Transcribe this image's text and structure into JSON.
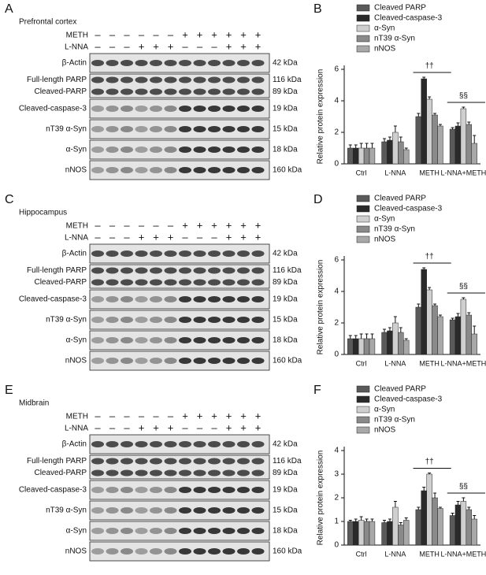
{
  "panels": [
    {
      "letter": "A",
      "region": "Prefrontal cortex",
      "treatments": [
        {
          "name": "METH",
          "signs": [
            "–",
            "–",
            "–",
            "–",
            "–",
            "–",
            "+",
            "+",
            "+",
            "+",
            "+",
            "+"
          ]
        },
        {
          "name": "L-NNA",
          "signs": [
            "–",
            "–",
            "–",
            "+",
            "+",
            "+",
            "–",
            "–",
            "–",
            "+",
            "+",
            "+"
          ]
        }
      ],
      "blots": [
        {
          "labels": [
            "β-Actin"
          ],
          "sizes": [
            "42 kDa"
          ]
        },
        {
          "labels": [
            "Full-length PARP",
            "Cleaved-PARP"
          ],
          "sizes": [
            "116 kDa",
            "89 kDa"
          ]
        },
        {
          "labels": [
            "Cleaved-caspase-3"
          ],
          "sizes": [
            "19 kDa"
          ]
        },
        {
          "labels": [
            "nT39 α-Syn"
          ],
          "sizes": [
            "15 kDa"
          ]
        },
        {
          "labels": [
            "α-Syn"
          ],
          "sizes": [
            "18 kDa"
          ]
        },
        {
          "labels": [
            "nNOS"
          ],
          "sizes": [
            "160 kDa"
          ]
        }
      ]
    },
    {
      "letter": "C",
      "region": "Hippocampus",
      "treatments": [
        {
          "name": "METH",
          "signs": [
            "–",
            "–",
            "–",
            "–",
            "–",
            "–",
            "+",
            "+",
            "+",
            "+",
            "+",
            "+"
          ]
        },
        {
          "name": "L-NNA",
          "signs": [
            "–",
            "–",
            "–",
            "+",
            "+",
            "+",
            "–",
            "–",
            "–",
            "+",
            "+",
            "+"
          ]
        }
      ],
      "blots": [
        {
          "labels": [
            "β-Actin"
          ],
          "sizes": [
            "42 kDa"
          ]
        },
        {
          "labels": [
            "Full-length PARP",
            "Cleaved-PARP"
          ],
          "sizes": [
            "116 kDa",
            "89 kDa"
          ]
        },
        {
          "labels": [
            "Cleaved-caspase-3"
          ],
          "sizes": [
            "19 kDa"
          ]
        },
        {
          "labels": [
            "nT39 α-Syn"
          ],
          "sizes": [
            "15 kDa"
          ]
        },
        {
          "labels": [
            "α-Syn"
          ],
          "sizes": [
            "18 kDa"
          ]
        },
        {
          "labels": [
            "nNOS"
          ],
          "sizes": [
            "160 kDa"
          ]
        }
      ]
    },
    {
      "letter": "E",
      "region": "Midbrain",
      "treatments": [
        {
          "name": "METH",
          "signs": [
            "–",
            "–",
            "–",
            "–",
            "–",
            "–",
            "+",
            "+",
            "+",
            "+",
            "+",
            "+"
          ]
        },
        {
          "name": "L-NNA",
          "signs": [
            "–",
            "–",
            "–",
            "+",
            "+",
            "+",
            "–",
            "–",
            "–",
            "+",
            "+",
            "+"
          ]
        }
      ],
      "blots": [
        {
          "labels": [
            "β-Actin"
          ],
          "sizes": [
            "42 kDa"
          ]
        },
        {
          "labels": [
            "Full-length PARP",
            "Cleaved-PARP"
          ],
          "sizes": [
            "116 kDa",
            "89 kDa"
          ]
        },
        {
          "labels": [
            "Cleaved-caspase-3"
          ],
          "sizes": [
            "19 kDa"
          ]
        },
        {
          "labels": [
            "nT39 α-Syn"
          ],
          "sizes": [
            "15 kDa"
          ]
        },
        {
          "labels": [
            "α-Syn"
          ],
          "sizes": [
            "18 kDa"
          ]
        },
        {
          "labels": [
            "nNOS"
          ],
          "sizes": [
            "160 kDa"
          ]
        }
      ]
    }
  ],
  "chart_data": [
    {
      "type": "bar",
      "panel_label": "B",
      "ylabel": "Relative protein expression",
      "categories": [
        "Ctrl",
        "L-NNA",
        "METH",
        "L-NNA+METH"
      ],
      "ylim": [
        0,
        6
      ],
      "yticks": [
        0,
        2,
        4,
        6
      ],
      "legend": "top-left",
      "annotations": [
        null,
        null,
        "††",
        "§§"
      ],
      "series": [
        {
          "name": "Cleaved PARP",
          "color": "#5a5a5a",
          "values": [
            1.0,
            1.4,
            3.0,
            2.2
          ],
          "errors": [
            0.2,
            0.2,
            0.2,
            0.1
          ]
        },
        {
          "name": "Cleaved-caspase-3",
          "color": "#2a2a2a",
          "values": [
            1.0,
            1.5,
            5.4,
            2.4
          ],
          "errors": [
            0.2,
            0.2,
            0.1,
            0.2
          ]
        },
        {
          "name": "α-Syn",
          "color": "#cfcfcf",
          "values": [
            1.0,
            2.0,
            4.1,
            3.5
          ],
          "errors": [
            0.3,
            0.4,
            0.15,
            0.1
          ]
        },
        {
          "name": "nT39 α-Syn",
          "color": "#8a8a8a",
          "values": [
            1.0,
            1.4,
            3.1,
            2.5
          ],
          "errors": [
            0.3,
            0.3,
            0.1,
            0.15
          ]
        },
        {
          "name": "nNOS",
          "color": "#a8a8a8",
          "values": [
            1.0,
            0.9,
            2.4,
            1.3
          ],
          "errors": [
            0.3,
            0.1,
            0.1,
            0.5
          ]
        }
      ]
    },
    {
      "type": "bar",
      "panel_label": "D",
      "ylabel": "Relative protein expression",
      "categories": [
        "Ctrl",
        "L-NNA",
        "METH",
        "L-NNA+METH"
      ],
      "ylim": [
        0,
        6
      ],
      "yticks": [
        0,
        2,
        4,
        6
      ],
      "legend": "top-left",
      "annotations": [
        null,
        null,
        "††",
        "§§"
      ],
      "series": [
        {
          "name": "Cleaved PARP",
          "color": "#5a5a5a",
          "values": [
            1.0,
            1.4,
            3.0,
            2.2
          ],
          "errors": [
            0.2,
            0.2,
            0.2,
            0.1
          ]
        },
        {
          "name": "Cleaved-caspase-3",
          "color": "#2a2a2a",
          "values": [
            1.0,
            1.5,
            5.4,
            2.4
          ],
          "errors": [
            0.2,
            0.2,
            0.1,
            0.2
          ]
        },
        {
          "name": "α-Syn",
          "color": "#cfcfcf",
          "values": [
            1.0,
            2.0,
            4.1,
            3.5
          ],
          "errors": [
            0.3,
            0.4,
            0.15,
            0.1
          ]
        },
        {
          "name": "nT39 α-Syn",
          "color": "#8a8a8a",
          "values": [
            1.0,
            1.4,
            3.1,
            2.5
          ],
          "errors": [
            0.3,
            0.3,
            0.1,
            0.15
          ]
        },
        {
          "name": "nNOS",
          "color": "#a8a8a8",
          "values": [
            1.0,
            0.9,
            2.4,
            1.3
          ],
          "errors": [
            0.3,
            0.1,
            0.1,
            0.5
          ]
        }
      ]
    },
    {
      "type": "bar",
      "panel_label": "F",
      "ylabel": "Relative protein expression",
      "categories": [
        "Ctrl",
        "L-NNA",
        "METH",
        "L-NNA+METH"
      ],
      "ylim": [
        0,
        4
      ],
      "yticks": [
        0,
        1,
        2,
        3,
        4
      ],
      "legend": "top-left",
      "annotations": [
        null,
        null,
        "††",
        "§§"
      ],
      "series": [
        {
          "name": "Cleaved PARP",
          "color": "#5a5a5a",
          "values": [
            1.0,
            0.95,
            1.5,
            1.25
          ],
          "errors": [
            0.05,
            0.1,
            0.1,
            0.1
          ]
        },
        {
          "name": "Cleaved-caspase-3",
          "color": "#2a2a2a",
          "values": [
            1.0,
            1.0,
            2.3,
            1.7
          ],
          "errors": [
            0.1,
            0.1,
            0.15,
            0.15
          ]
        },
        {
          "name": "α-Syn",
          "color": "#cfcfcf",
          "values": [
            1.05,
            1.6,
            3.0,
            1.85
          ],
          "errors": [
            0.15,
            0.25,
            0.05,
            0.15
          ]
        },
        {
          "name": "nT39 α-Syn",
          "color": "#8a8a8a",
          "values": [
            1.0,
            0.85,
            2.0,
            1.5
          ],
          "errors": [
            0.1,
            0.1,
            0.2,
            0.1
          ]
        },
        {
          "name": "nNOS",
          "color": "#a8a8a8",
          "values": [
            1.0,
            1.05,
            1.55,
            1.1
          ],
          "errors": [
            0.1,
            0.1,
            0.05,
            0.15
          ]
        }
      ]
    }
  ]
}
